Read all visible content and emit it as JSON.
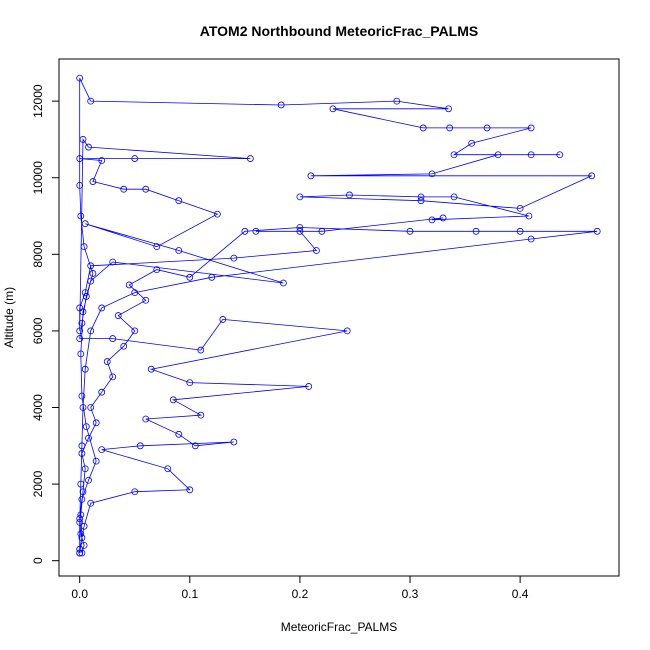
{
  "chart_data": {
    "type": "line",
    "title": "ATOM2 Northbound MeteoricFrac_PALMS",
    "x_label": "MeteoricFrac_PALMS",
    "y_label": "Altitude (m)",
    "color": "#0000ff",
    "markers": true,
    "xlim": [
      -0.0188,
      0.4898
    ],
    "ylim": [
      -400,
      13100
    ],
    "xticks": [
      {
        "value": 0,
        "label": "0.0"
      },
      0.1,
      0.2,
      0.3,
      0.4
    ],
    "yticks": [
      0,
      2000,
      4000,
      6000,
      8000,
      10000,
      12000
    ],
    "x": [
      0,
      0.002,
      0.001,
      0.003,
      0.005,
      0.002,
      0.008,
      0.015,
      0.01,
      0.02,
      0.03,
      0.025,
      0.04,
      0.05,
      0.035,
      0.06,
      0.045,
      0.07,
      0.1,
      0.15,
      0.2,
      0.3,
      0.36,
      0.4,
      0.47,
      0.41,
      0.12,
      0.05,
      0.02,
      0.01,
      0.005,
      0.003,
      0.002,
      0.001,
      0,
      0,
      0,
      0.004,
      0.01,
      0.05,
      0.1,
      0.08,
      0.02,
      0.055,
      0.14,
      0.105,
      0.09,
      0.06,
      0.11,
      0.085,
      0.208,
      0.1,
      0.065,
      0.243,
      0.13,
      0.11,
      0.03,
      0,
      0.002,
      0.006,
      0.012,
      0.004,
      0.001,
      0,
      0,
      0.01,
      0.183,
      0.288,
      0.335,
      0.23,
      0.312,
      0.336,
      0.37,
      0.41,
      0.356,
      0.34,
      0.41,
      0.436,
      0.38,
      0.32,
      0.21,
      0.465,
      0.4,
      0.31,
      0.2,
      0.245,
      0.31,
      0.34,
      0.408,
      0.32,
      0.33,
      0.22,
      0.16,
      0.2,
      0.215,
      0.14,
      0.01,
      0.005,
      0,
      0,
      0.003,
      0.008,
      0.155,
      0.05,
      0,
      0.02,
      0.012,
      0.04,
      0.06,
      0.09,
      0.125,
      0.07,
      0.005,
      0.09,
      0.185,
      0.03,
      0.01,
      0.003,
      0.001,
      0.002,
      0.006,
      0.015,
      0.008,
      0.002,
      0,
      0.001,
      0.004,
      0.002
    ],
    "values": [
      200,
      600,
      1200,
      1800,
      2400,
      2800,
      3200,
      3600,
      4000,
      4400,
      4800,
      5200,
      5600,
      6000,
      6400,
      6800,
      7200,
      7600,
      7400,
      8600,
      8700,
      8600,
      8600,
      8600,
      8600,
      8400,
      7400,
      7000,
      6600,
      6000,
      5000,
      4000,
      3000,
      2000,
      1000,
      200,
      300,
      900,
      1500,
      1800,
      1850,
      2400,
      2900,
      3000,
      3100,
      3000,
      3300,
      3700,
      3800,
      4200,
      4550,
      4650,
      5000,
      6000,
      6300,
      5500,
      5800,
      5800,
      6200,
      6900,
      7500,
      8200,
      9000,
      9800,
      12600,
      12000,
      11900,
      12000,
      11800,
      11800,
      11300,
      11300,
      11300,
      11300,
      10900,
      10600,
      10600,
      10600,
      10600,
      10100,
      10050,
      10050,
      9200,
      9400,
      9500,
      9550,
      9500,
      9500,
      9000,
      8900,
      8950,
      8600,
      8600,
      8600,
      8100,
      7900,
      7700,
      7000,
      6600,
      6000,
      11000,
      10800,
      10500,
      10500,
      10500,
      10450,
      9900,
      9700,
      9700,
      9400,
      9050,
      8200,
      8800,
      8100,
      7250,
      7800,
      7300,
      6500,
      5400,
      4300,
      3500,
      2600,
      2100,
      1600,
      1100,
      700,
      400,
      200
    ]
  }
}
